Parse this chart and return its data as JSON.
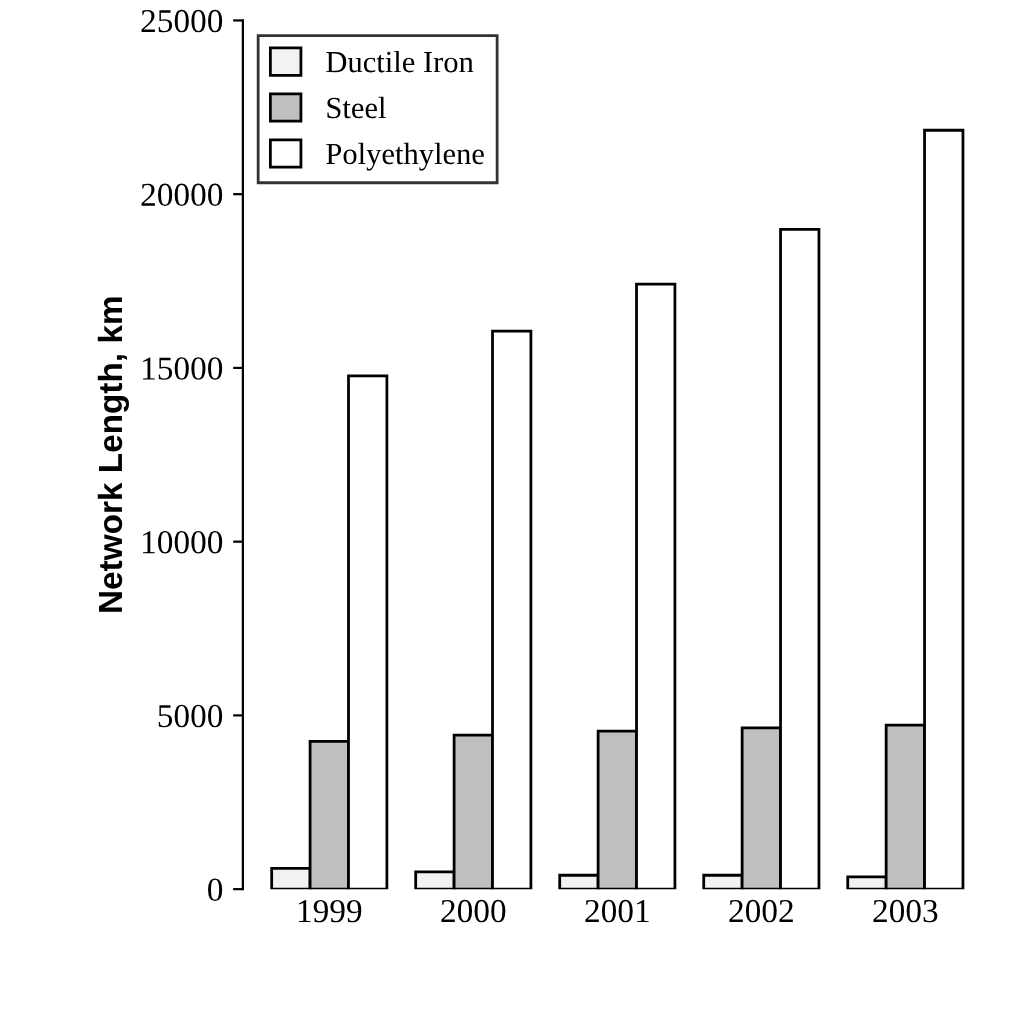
{
  "chart_data": {
    "type": "bar",
    "ylabel": "Network Length, km",
    "categories": [
      "1999",
      "2000",
      "2001",
      "2002",
      "2003"
    ],
    "series": [
      {
        "name": "Ductile Iron",
        "color": "#f2f2f2",
        "values": [
          600,
          500,
          400,
          400,
          350
        ]
      },
      {
        "name": "Steel",
        "color": "#bfbfbf",
        "values": [
          4250,
          4430,
          4550,
          4640,
          4720
        ]
      },
      {
        "name": "Polyethylene",
        "color": "#ffffff",
        "values": [
          14770,
          16060,
          17410,
          18990,
          21840
        ]
      }
    ],
    "ylim": [
      0,
      25000
    ],
    "yticks": [
      0,
      5000,
      10000,
      15000,
      20000,
      25000
    ],
    "grid": false,
    "legend": "top left"
  }
}
